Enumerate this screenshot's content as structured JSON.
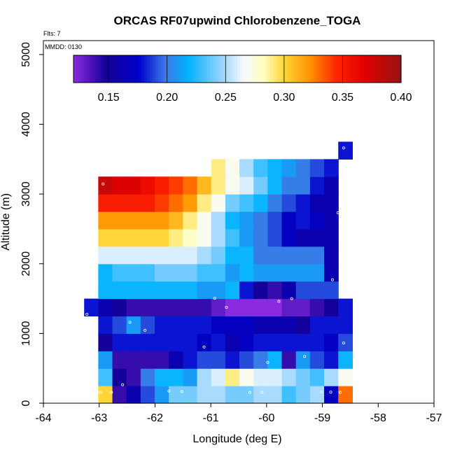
{
  "chart_data": {
    "type": "heatmap",
    "title": "ORCAS RF07upwind Chlorobenzene_TOGA",
    "annotations": [
      "Flts: 7",
      "MMDD: 0130"
    ],
    "xlabel": "Longitude (deg E)",
    "ylabel": "Altitude (m)",
    "xlim": [
      -64,
      -57
    ],
    "ylim": [
      0,
      5200
    ],
    "xticks": [
      -64,
      -63,
      -62,
      -61,
      -60,
      -59,
      -58,
      -57
    ],
    "yticks": [
      0,
      1000,
      2000,
      3000,
      4000,
      5000
    ],
    "colorbar": {
      "range": [
        0.12,
        0.4
      ],
      "ticks": [
        0.15,
        0.2,
        0.25,
        0.3,
        0.35,
        0.4
      ],
      "tick_labels": [
        "0.15",
        "0.20",
        "0.25",
        "0.30",
        "0.35",
        "0.40"
      ]
    },
    "grid": {
      "lon_start": -63.27,
      "lon_step": 0.253,
      "alt_start": 0,
      "alt_step": 250,
      "rows": [
        {
          "r": 0,
          "c0": 1,
          "v": [
            0.3,
            0.14,
            0.16,
            0.19,
            0.21,
            0.24,
            0.24,
            0.25,
            0.25,
            0.24,
            0.24,
            0.25,
            0.25,
            0.23,
            0.24,
            0.25,
            0.17,
            0.33
          ]
        },
        {
          "r": 1,
          "c0": 1,
          "v": [
            0.23,
            0.15,
            0.14,
            0.2,
            0.22,
            0.22,
            0.21,
            0.25,
            0.26,
            0.29,
            0.27,
            0.26,
            0.26,
            0.25,
            0.24,
            0.23,
            0.25,
            0.27
          ]
        },
        {
          "r": 2,
          "c0": 1,
          "v": [
            0.21,
            0.14,
            0.14,
            0.14,
            0.14,
            0.16,
            0.18,
            0.19,
            0.19,
            0.18,
            0.19,
            0.2,
            0.22,
            0.14,
            0.21,
            0.19,
            0.18,
            0.22
          ]
        },
        {
          "r": 3,
          "c0": 1,
          "v": [
            0.15,
            0.18,
            0.18,
            0.18,
            0.18,
            0.18,
            0.18,
            0.17,
            0.18,
            0.16,
            0.17,
            0.18,
            0.18,
            0.18,
            0.18,
            0.18,
            0.17,
            0.19
          ]
        },
        {
          "r": 4,
          "c0": 1,
          "v": [
            0.18,
            0.19,
            0.21,
            0.19,
            0.18,
            0.18,
            0.18,
            0.18,
            0.17,
            0.17,
            0.17,
            0.16,
            0.16,
            0.16,
            0.15,
            0.18,
            0.18,
            0.18
          ]
        },
        {
          "r": 5,
          "c0": 0,
          "v": [
            0.18,
            0.16,
            0.15,
            0.14,
            0.14,
            0.14,
            0.14,
            0.14,
            0.14,
            0.13,
            0.12,
            0.12,
            0.12,
            0.12,
            0.13,
            0.13,
            0.14,
            0.15,
            0.18
          ]
        },
        {
          "r": 6,
          "c0": 1,
          "v": [
            0.22,
            0.22,
            0.22,
            0.22,
            0.22,
            0.22,
            0.22,
            0.21,
            0.21,
            0.22,
            0.18,
            0.15,
            0.14,
            0.16,
            0.19,
            0.19,
            0.19
          ]
        },
        {
          "r": 7,
          "c0": 1,
          "v": [
            0.22,
            0.23,
            0.23,
            0.23,
            0.24,
            0.24,
            0.24,
            0.23,
            0.23,
            0.21,
            0.22,
            0.21,
            0.21,
            0.21,
            0.21,
            0.21,
            0.16
          ]
        },
        {
          "r": 8,
          "c0": 1,
          "v": [
            0.26,
            0.26,
            0.26,
            0.26,
            0.26,
            0.26,
            0.26,
            0.25,
            0.24,
            0.22,
            0.22,
            0.2,
            0.2,
            0.2,
            0.2,
            0.2,
            0.16
          ]
        },
        {
          "r": 9,
          "c0": 1,
          "v": [
            0.3,
            0.3,
            0.3,
            0.3,
            0.3,
            0.29,
            0.28,
            0.27,
            0.25,
            0.23,
            0.21,
            0.2,
            0.19,
            0.17,
            0.16,
            0.16,
            0.16
          ]
        },
        {
          "r": 10,
          "c0": 1,
          "v": [
            0.32,
            0.32,
            0.32,
            0.32,
            0.32,
            0.31,
            0.29,
            0.27,
            0.25,
            0.22,
            0.21,
            0.2,
            0.19,
            0.17,
            0.18,
            0.17,
            0.16
          ]
        },
        {
          "r": 11,
          "c0": 1,
          "v": [
            0.35,
            0.35,
            0.35,
            0.35,
            0.34,
            0.33,
            0.32,
            0.29,
            0.27,
            0.24,
            0.23,
            0.22,
            0.2,
            0.19,
            0.18,
            0.16,
            0.16
          ]
        },
        {
          "r": 12,
          "c0": 1,
          "v": [
            0.38,
            0.37,
            0.37,
            0.36,
            0.35,
            0.34,
            0.33,
            0.31,
            0.29,
            0.27,
            0.26,
            0.24,
            0.22,
            0.2,
            0.2,
            0.18,
            0.16
          ]
        },
        {
          "r": 13,
          "c0": 9,
          "v": [
            0.29,
            0.27,
            0.25,
            0.23,
            0.22,
            0.21,
            0.2,
            0.19,
            0.18
          ]
        },
        {
          "r": 14,
          "c0": 18,
          "v": [
            0.18
          ]
        }
      ]
    },
    "sample_points": [
      [
        -63.22,
        1275
      ],
      [
        -62.98,
        155
      ],
      [
        -62.93,
        3145
      ],
      [
        -62.78,
        155
      ],
      [
        -62.58,
        265
      ],
      [
        -62.45,
        1160
      ],
      [
        -62.18,
        1045
      ],
      [
        -61.75,
        175
      ],
      [
        -61.52,
        165
      ],
      [
        -61.12,
        805
      ],
      [
        -60.93,
        1505
      ],
      [
        -60.72,
        1375
      ],
      [
        -60.3,
        155
      ],
      [
        -60.08,
        155
      ],
      [
        -59.98,
        585
      ],
      [
        -59.78,
        1460
      ],
      [
        -59.55,
        1500
      ],
      [
        -59.32,
        670
      ],
      [
        -59.02,
        160
      ],
      [
        -58.85,
        158
      ],
      [
        -58.82,
        1770
      ],
      [
        -58.72,
        2730
      ],
      [
        -58.68,
        155
      ],
      [
        -58.62,
        865
      ],
      [
        -58.62,
        3660
      ]
    ]
  }
}
